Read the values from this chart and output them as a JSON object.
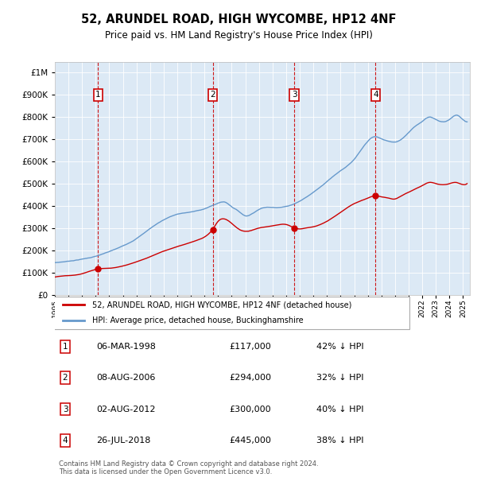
{
  "title": "52, ARUNDEL ROAD, HIGH WYCOMBE, HP12 4NF",
  "subtitle": "Price paid vs. HM Land Registry's House Price Index (HPI)",
  "background_color": "#ffffff",
  "plot_bg_color": "#dce9f5",
  "grid_color": "#ffffff",
  "ylim": [
    0,
    1050000
  ],
  "yticks": [
    0,
    100000,
    200000,
    300000,
    400000,
    500000,
    600000,
    700000,
    800000,
    900000,
    1000000
  ],
  "xlim_start": 1995.0,
  "xlim_end": 2025.5,
  "transactions": [
    {
      "num": 1,
      "year": 1998.18,
      "price": 117000,
      "date": "06-MAR-1998",
      "pct": "42%"
    },
    {
      "num": 2,
      "year": 2006.6,
      "price": 294000,
      "date": "08-AUG-2006",
      "pct": "32%"
    },
    {
      "num": 3,
      "year": 2012.59,
      "price": 300000,
      "date": "02-AUG-2012",
      "pct": "40%"
    },
    {
      "num": 4,
      "year": 2018.57,
      "price": 445000,
      "date": "26-JUL-2018",
      "pct": "38%"
    }
  ],
  "red_line_color": "#cc0000",
  "blue_line_color": "#6699cc",
  "transaction_box_color": "#cc0000",
  "footnote": "Contains HM Land Registry data © Crown copyright and database right 2024.\nThis data is licensed under the Open Government Licence v3.0.",
  "legend_label_red": "52, ARUNDEL ROAD, HIGH WYCOMBE, HP12 4NF (detached house)",
  "legend_label_blue": "HPI: Average price, detached house, Buckinghamshire",
  "table_rows": [
    {
      "num": 1,
      "date": "06-MAR-1998",
      "price": "£117,000",
      "pct": "42% ↓ HPI"
    },
    {
      "num": 2,
      "date": "08-AUG-2006",
      "price": "£294,000",
      "pct": "32% ↓ HPI"
    },
    {
      "num": 3,
      "date": "02-AUG-2012",
      "price": "£300,000",
      "pct": "40% ↓ HPI"
    },
    {
      "num": 4,
      "date": "26-JUL-2018",
      "price": "£445,000",
      "pct": "38% ↓ HPI"
    }
  ],
  "hpi_keypoints": [
    [
      1995.0,
      145000
    ],
    [
      1996.0,
      152000
    ],
    [
      1997.0,
      162000
    ],
    [
      1998.0,
      175000
    ],
    [
      1999.0,
      195000
    ],
    [
      2000.0,
      220000
    ],
    [
      2001.0,
      255000
    ],
    [
      2002.0,
      300000
    ],
    [
      2003.0,
      340000
    ],
    [
      2004.0,
      365000
    ],
    [
      2005.0,
      375000
    ],
    [
      2006.0,
      390000
    ],
    [
      2007.0,
      415000
    ],
    [
      2007.5,
      420000
    ],
    [
      2008.0,
      400000
    ],
    [
      2008.5,
      380000
    ],
    [
      2009.0,
      360000
    ],
    [
      2009.5,
      370000
    ],
    [
      2010.0,
      390000
    ],
    [
      2011.0,
      400000
    ],
    [
      2012.0,
      405000
    ],
    [
      2013.0,
      430000
    ],
    [
      2014.0,
      470000
    ],
    [
      2015.0,
      520000
    ],
    [
      2016.0,
      570000
    ],
    [
      2017.0,
      620000
    ],
    [
      2017.5,
      660000
    ],
    [
      2018.0,
      700000
    ],
    [
      2018.5,
      720000
    ],
    [
      2019.0,
      710000
    ],
    [
      2019.5,
      700000
    ],
    [
      2020.0,
      695000
    ],
    [
      2020.5,
      710000
    ],
    [
      2021.0,
      740000
    ],
    [
      2021.5,
      770000
    ],
    [
      2022.0,
      790000
    ],
    [
      2022.5,
      810000
    ],
    [
      2023.0,
      800000
    ],
    [
      2023.5,
      790000
    ],
    [
      2024.0,
      800000
    ],
    [
      2024.5,
      820000
    ],
    [
      2025.0,
      800000
    ],
    [
      2025.3,
      790000
    ]
  ],
  "red_keypoints": [
    [
      1995.0,
      80000
    ],
    [
      1996.0,
      87000
    ],
    [
      1997.0,
      95000
    ],
    [
      1998.18,
      117000
    ],
    [
      1999.0,
      120000
    ],
    [
      2000.0,
      130000
    ],
    [
      2001.0,
      148000
    ],
    [
      2002.0,
      170000
    ],
    [
      2003.0,
      195000
    ],
    [
      2004.0,
      215000
    ],
    [
      2005.0,
      235000
    ],
    [
      2006.0,
      260000
    ],
    [
      2006.6,
      294000
    ],
    [
      2007.0,
      330000
    ],
    [
      2007.5,
      340000
    ],
    [
      2008.0,
      320000
    ],
    [
      2008.5,
      295000
    ],
    [
      2009.0,
      285000
    ],
    [
      2009.5,
      290000
    ],
    [
      2010.0,
      300000
    ],
    [
      2010.5,
      305000
    ],
    [
      2011.0,
      310000
    ],
    [
      2011.5,
      315000
    ],
    [
      2012.0,
      315000
    ],
    [
      2012.59,
      300000
    ],
    [
      2013.0,
      295000
    ],
    [
      2013.5,
      300000
    ],
    [
      2014.0,
      305000
    ],
    [
      2015.0,
      330000
    ],
    [
      2016.0,
      370000
    ],
    [
      2017.0,
      410000
    ],
    [
      2018.0,
      435000
    ],
    [
      2018.57,
      445000
    ],
    [
      2019.0,
      440000
    ],
    [
      2019.5,
      435000
    ],
    [
      2020.0,
      430000
    ],
    [
      2020.5,
      445000
    ],
    [
      2021.0,
      460000
    ],
    [
      2021.5,
      475000
    ],
    [
      2022.0,
      490000
    ],
    [
      2022.5,
      505000
    ],
    [
      2023.0,
      500000
    ],
    [
      2023.5,
      495000
    ],
    [
      2024.0,
      500000
    ],
    [
      2024.5,
      505000
    ],
    [
      2025.0,
      495000
    ],
    [
      2025.3,
      500000
    ]
  ]
}
